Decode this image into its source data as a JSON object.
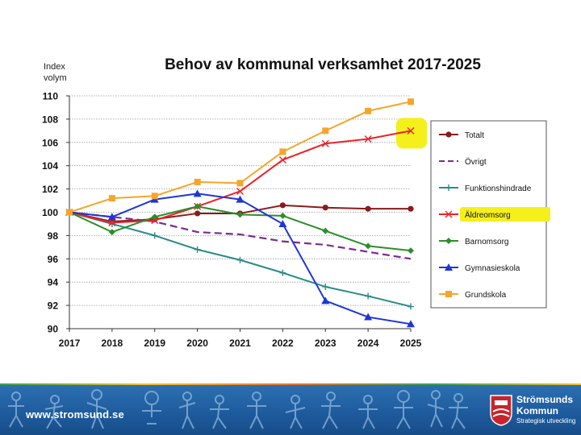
{
  "chart_data": {
    "type": "line",
    "title": "Behov av kommunal verksamhet 2017-2025",
    "ylabel_line1": "Index",
    "ylabel_line2": "volym",
    "xlabel": "",
    "x": [
      "2017",
      "2018",
      "2019",
      "2020",
      "2021",
      "2022",
      "2023",
      "2024",
      "2025"
    ],
    "ylim": [
      90,
      110
    ],
    "yticks": [
      90,
      92,
      94,
      96,
      98,
      100,
      102,
      104,
      106,
      108,
      110
    ],
    "grid": true,
    "legend_position": "right",
    "series": [
      {
        "name": "Totalt",
        "color": "#8b1a1a",
        "marker": "circle",
        "dash": false,
        "values": [
          100,
          99.2,
          99.4,
          99.9,
          99.9,
          100.6,
          100.4,
          100.3,
          100.3
        ]
      },
      {
        "name": "Övrigt",
        "color": "#7b2c8e",
        "marker": "none",
        "dash": true,
        "values": [
          100,
          99.6,
          99.2,
          98.3,
          98.1,
          97.5,
          97.2,
          96.6,
          96.0
        ]
      },
      {
        "name": "Funktionshindrade",
        "color": "#2a8a8a",
        "marker": "plus",
        "dash": false,
        "values": [
          100,
          99.0,
          98.0,
          96.8,
          95.9,
          94.8,
          93.6,
          92.8,
          91.9
        ]
      },
      {
        "name": "Äldreomsorg",
        "color": "#e8232a",
        "marker": "x",
        "dash": false,
        "values": [
          100,
          99.1,
          99.3,
          100.5,
          101.8,
          104.5,
          105.9,
          106.3,
          107.0
        ]
      },
      {
        "name": "Barnomsorg",
        "color": "#2a8f2a",
        "marker": "diamond",
        "dash": false,
        "values": [
          100,
          98.3,
          99.6,
          100.5,
          99.8,
          99.7,
          98.4,
          97.1,
          96.7
        ]
      },
      {
        "name": "Gymnasieskola",
        "color": "#1f35d6",
        "marker": "triangle",
        "dash": false,
        "values": [
          100,
          99.6,
          101.1,
          101.6,
          101.1,
          99.0,
          92.4,
          91.0,
          90.4
        ]
      },
      {
        "name": "Grundskola",
        "color": "#f5a52a",
        "marker": "square",
        "dash": false,
        "values": [
          100,
          101.2,
          101.4,
          102.6,
          102.5,
          105.2,
          107.0,
          108.7,
          109.5
        ]
      }
    ],
    "highlight_color": "#f5ef1c"
  },
  "footer": {
    "url": "www.stromsund.se",
    "logo_line1": "Strömsunds",
    "logo_line2": "Kommun",
    "logo_line3": "Strategisk utveckling"
  }
}
